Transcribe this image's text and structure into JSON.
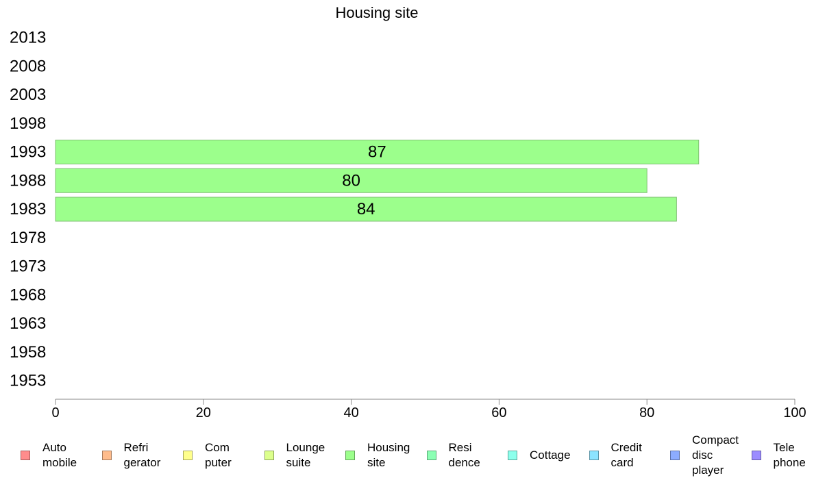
{
  "chart_data": {
    "type": "bar",
    "orientation": "horizontal",
    "title": "Housing site",
    "xlabel": "",
    "ylabel": "",
    "categories": [
      "2013",
      "2008",
      "2003",
      "1998",
      "1993",
      "1988",
      "1983",
      "1978",
      "1973",
      "1968",
      "1963",
      "1958",
      "1953"
    ],
    "series": [
      {
        "name": "Housing site",
        "color": "#9cff8c",
        "values": [
          null,
          null,
          null,
          null,
          87,
          80,
          84,
          null,
          null,
          null,
          null,
          null,
          null
        ],
        "data_labels": [
          "",
          "",
          "",
          "",
          "87",
          "80",
          "84",
          "",
          "",
          "",
          "",
          "",
          ""
        ]
      }
    ],
    "xlim": [
      0,
      100
    ],
    "x_ticks": [
      "0",
      "20",
      "40",
      "60",
      "80",
      "100"
    ],
    "grid": false,
    "legend_position": "bottom",
    "legend": [
      {
        "label": "Auto\nmobile",
        "color": "#ff8c8c"
      },
      {
        "label": "Refri\ngerator",
        "color": "#ffbc8c"
      },
      {
        "label": "Com\nputer",
        "color": "#ffff8c"
      },
      {
        "label": "Lounge\nsuite",
        "color": "#dcff8c"
      },
      {
        "label": "Housing\nsite",
        "color": "#9cff8c"
      },
      {
        "label": "Resi\ndence",
        "color": "#8cffb4"
      },
      {
        "label": "Cottage",
        "color": "#8cffec"
      },
      {
        "label": "Credit\ncard",
        "color": "#8ce4ff"
      },
      {
        "label": "Compact\ndisc\nplayer",
        "color": "#8cacff"
      },
      {
        "label": "Tele\nphone",
        "color": "#9c8cff"
      }
    ]
  }
}
